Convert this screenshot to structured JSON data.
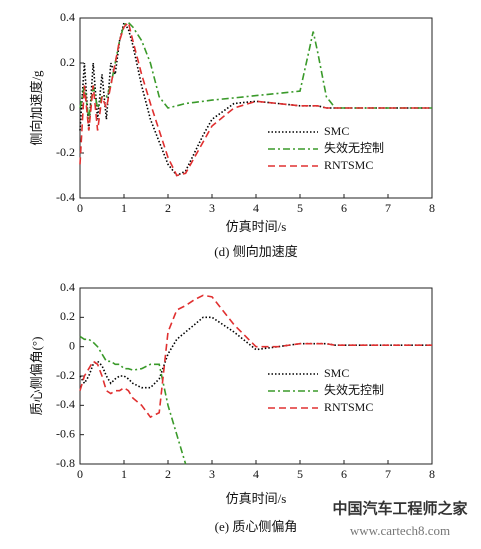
{
  "chart_data": [
    {
      "type": "line",
      "title": "(d) 侧向加速度",
      "xlabel": "仿真时间/s",
      "ylabel": "侧向加速度/g",
      "x": [
        0,
        0.1,
        0.2,
        0.3,
        0.4,
        0.5,
        0.6,
        0.7,
        0.8,
        0.9,
        1.0,
        1.1,
        1.2,
        1.4,
        1.6,
        1.8,
        2.0,
        2.2,
        2.4,
        2.6,
        2.8,
        3.0,
        3.5,
        4.0,
        4.5,
        5.0,
        5.2,
        5.3,
        5.4,
        5.6,
        5.8,
        6.0,
        7.0,
        8.0
      ],
      "xlim": [
        0,
        8
      ],
      "xticks": [
        0,
        1,
        2,
        3,
        4,
        5,
        6,
        7,
        8
      ],
      "ylim": [
        -0.4,
        0.4
      ],
      "yticks": [
        -0.4,
        -0.2,
        0,
        0.2,
        0.4
      ],
      "legend": "center-right",
      "series": [
        {
          "name": "SMC",
          "color": "#000000",
          "dash": "dotted",
          "values": [
            -0.1,
            0.2,
            -0.1,
            0.2,
            -0.05,
            0.15,
            -0.05,
            0.2,
            0.15,
            0.3,
            0.38,
            0.35,
            0.28,
            0.1,
            -0.05,
            -0.15,
            -0.25,
            -0.3,
            -0.28,
            -0.2,
            -0.12,
            -0.05,
            0.02,
            0.03,
            0.02,
            0.01,
            0.01,
            0.01,
            0.01,
            0,
            0,
            0,
            0,
            0
          ]
        },
        {
          "name": "失效无控制",
          "color": "#3a9a2a",
          "dash": "dashdot",
          "values": [
            0,
            0.1,
            -0.05,
            0.1,
            0,
            0.05,
            0.05,
            0.1,
            0.2,
            0.3,
            0.37,
            0.38,
            0.36,
            0.3,
            0.2,
            0.05,
            0,
            0.01,
            0.02,
            0.025,
            0.03,
            0.035,
            0.045,
            0.055,
            0.065,
            0.075,
            0.25,
            0.34,
            0.25,
            0.05,
            0,
            0,
            0,
            0
          ]
        },
        {
          "name": "RNTSMC",
          "color": "#e03030",
          "dash": "dashed",
          "values": [
            -0.25,
            0.1,
            -0.1,
            0.1,
            -0.1,
            0.05,
            0,
            0.1,
            0.2,
            0.3,
            0.36,
            0.38,
            0.3,
            0.15,
            0.02,
            -0.1,
            -0.22,
            -0.3,
            -0.29,
            -0.22,
            -0.15,
            -0.08,
            0,
            0.03,
            0.02,
            0.01,
            0.01,
            0.01,
            0.01,
            0,
            0,
            0,
            0,
            0
          ]
        }
      ]
    },
    {
      "type": "line",
      "title": "(e) 质心侧偏角",
      "xlabel": "仿真时间/s",
      "ylabel": "质心侧偏角(°)",
      "x": [
        0,
        0.1,
        0.2,
        0.3,
        0.4,
        0.5,
        0.6,
        0.7,
        0.8,
        0.9,
        1.0,
        1.1,
        1.2,
        1.4,
        1.6,
        1.8,
        2.0,
        2.2,
        2.4,
        2.6,
        2.8,
        3.0,
        3.5,
        4.0,
        4.5,
        5.0,
        5.2,
        5.3,
        5.4,
        5.6,
        5.8,
        6.0,
        7.0,
        8.0
      ],
      "xlim": [
        0,
        8
      ],
      "xticks": [
        0,
        1,
        2,
        3,
        4,
        5,
        6,
        7,
        8
      ],
      "ylim": [
        -0.8,
        0.4
      ],
      "yticks": [
        -0.8,
        -0.6,
        -0.4,
        -0.2,
        0,
        0.2,
        0.4
      ],
      "legend": "center-right",
      "series": [
        {
          "name": "SMC",
          "color": "#000000",
          "dash": "dotted",
          "values": [
            -0.2,
            -0.25,
            -0.2,
            -0.12,
            -0.1,
            -0.13,
            -0.2,
            -0.25,
            -0.22,
            -0.2,
            -0.2,
            -0.22,
            -0.25,
            -0.28,
            -0.28,
            -0.22,
            -0.05,
            0.05,
            0.1,
            0.15,
            0.2,
            0.2,
            0.1,
            -0.02,
            0,
            0.02,
            0.02,
            0.02,
            0.02,
            0.02,
            0.01,
            0.01,
            0.01,
            0.01
          ]
        },
        {
          "name": "失效无控制",
          "color": "#3a9a2a",
          "dash": "dashdot",
          "values": [
            0.07,
            0.05,
            0.05,
            0.03,
            0,
            -0.05,
            -0.1,
            -0.1,
            -0.12,
            -0.12,
            -0.15,
            -0.15,
            -0.16,
            -0.15,
            -0.12,
            -0.12,
            -0.4,
            -0.6,
            -0.8,
            null,
            null,
            null,
            null,
            null,
            null,
            null,
            null,
            null,
            null,
            null,
            null,
            null,
            null,
            null
          ]
        },
        {
          "name": "RNTSMC",
          "color": "#e03030",
          "dash": "dashed",
          "values": [
            -0.3,
            -0.2,
            -0.15,
            -0.1,
            -0.12,
            -0.2,
            -0.3,
            -0.32,
            -0.3,
            -0.3,
            -0.28,
            -0.3,
            -0.35,
            -0.4,
            -0.48,
            -0.45,
            0.1,
            0.25,
            0.28,
            0.32,
            0.35,
            0.34,
            0.15,
            0,
            0,
            0.02,
            0.02,
            0.02,
            0.02,
            0.02,
            0.01,
            0.01,
            0.01,
            0.01
          ]
        }
      ]
    }
  ],
  "watermark": [
    "中国汽车工程师之家",
    "www.cartech8.com"
  ]
}
